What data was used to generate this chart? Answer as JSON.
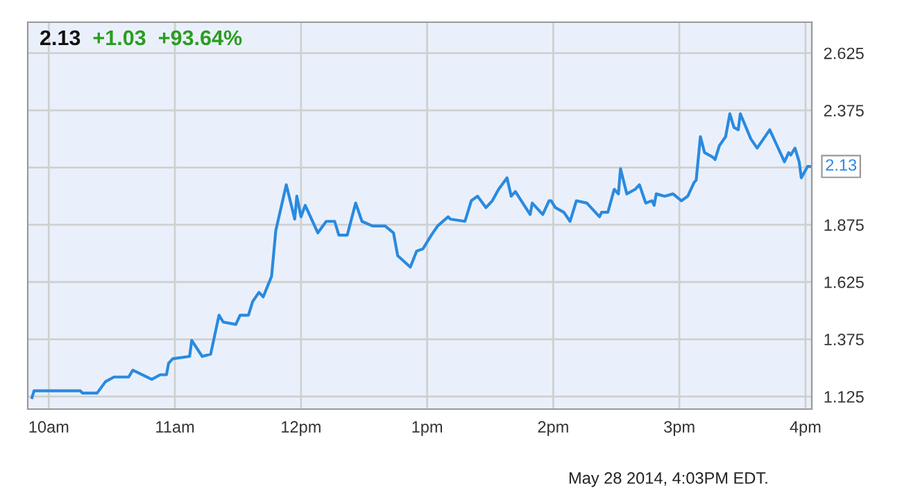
{
  "chart_data": {
    "type": "line",
    "title": "2.13",
    "subtitle": "+1.03  +93.64%",
    "annotations": [
      {
        "text": "2.13",
        "x": "2014-05-28T16:02",
        "y": 2.13
      },
      "May 28 2014, 4:03PM EDT."
    ],
    "x": [
      "2014-05-28T09:52",
      "2014-05-28T09:53",
      "2014-05-28T10:15",
      "2014-05-28T10:16",
      "2014-05-28T10:23",
      "2014-05-28T10:27",
      "2014-05-28T10:31",
      "2014-05-28T10:38",
      "2014-05-28T10:40",
      "2014-05-28T10:49",
      "2014-05-28T10:53",
      "2014-05-28T10:56",
      "2014-05-28T10:57",
      "2014-05-28T10:59",
      "2014-05-28T11:07",
      "2014-05-28T11:08",
      "2014-05-28T11:13",
      "2014-05-28T11:17",
      "2014-05-28T11:21",
      "2014-05-28T11:23",
      "2014-05-28T11:29",
      "2014-05-28T11:31",
      "2014-05-28T11:35",
      "2014-05-28T11:37",
      "2014-05-28T11:40",
      "2014-05-28T11:42",
      "2014-05-28T11:46",
      "2014-05-28T11:48",
      "2014-05-28T11:53",
      "2014-05-28T11:57",
      "2014-05-28T11:58",
      "2014-05-28T12:00",
      "2014-05-28T12:02",
      "2014-05-28T12:08",
      "2014-05-28T12:12",
      "2014-05-28T12:16",
      "2014-05-28T12:18",
      "2014-05-28T12:22",
      "2014-05-28T12:26",
      "2014-05-28T12:29",
      "2014-05-28T12:34",
      "2014-05-28T12:40",
      "2014-05-28T12:44",
      "2014-05-28T12:46",
      "2014-05-28T12:52",
      "2014-05-28T12:55",
      "2014-05-28T12:58",
      "2014-05-28T13:02",
      "2014-05-28T13:05",
      "2014-05-28T13:10",
      "2014-05-28T13:11",
      "2014-05-28T13:18",
      "2014-05-28T13:21",
      "2014-05-28T13:24",
      "2014-05-28T13:28",
      "2014-05-28T13:31",
      "2014-05-28T13:34",
      "2014-05-28T13:38",
      "2014-05-28T13:40",
      "2014-05-28T13:42",
      "2014-05-28T13:49",
      "2014-05-28T13:50",
      "2014-05-28T13:55",
      "2014-05-28T13:58",
      "2014-05-28T13:59",
      "2014-05-28T14:01",
      "2014-05-28T14:05",
      "2014-05-28T14:08",
      "2014-05-28T14:11",
      "2014-05-28T14:16",
      "2014-05-28T14:22",
      "2014-05-28T14:23",
      "2014-05-28T14:26",
      "2014-05-28T14:29",
      "2014-05-28T14:31",
      "2014-05-28T14:32",
      "2014-05-28T14:35",
      "2014-05-28T14:39",
      "2014-05-28T14:41",
      "2014-05-28T14:44",
      "2014-05-28T14:47",
      "2014-05-28T14:48",
      "2014-05-28T14:49",
      "2014-05-28T14:53",
      "2014-05-28T14:57",
      "2014-05-28T15:01",
      "2014-05-28T15:04",
      "2014-05-28T15:07",
      "2014-05-28T15:08",
      "2014-05-28T15:10",
      "2014-05-28T15:12",
      "2014-05-28T15:16",
      "2014-05-28T15:17",
      "2014-05-28T15:19",
      "2014-05-28T15:22",
      "2014-05-28T15:24",
      "2014-05-28T15:26",
      "2014-05-28T15:28",
      "2014-05-28T15:29",
      "2014-05-28T15:34",
      "2014-05-28T15:37",
      "2014-05-28T15:43",
      "2014-05-28T15:46",
      "2014-05-28T15:50",
      "2014-05-28T15:52",
      "2014-05-28T15:53",
      "2014-05-28T15:55",
      "2014-05-28T15:57",
      "2014-05-28T15:58",
      "2014-05-28T16:01",
      "2014-05-28T16:02"
    ],
    "series": [
      {
        "color": "#2a8ae0",
        "values": [
          1.12,
          1.15,
          1.15,
          1.14,
          1.14,
          1.19,
          1.21,
          1.21,
          1.24,
          1.2,
          1.22,
          1.22,
          1.27,
          1.29,
          1.3,
          1.37,
          1.3,
          1.31,
          1.48,
          1.45,
          1.44,
          1.48,
          1.48,
          1.54,
          1.58,
          1.56,
          1.65,
          1.85,
          2.05,
          1.9,
          2.0,
          1.91,
          1.96,
          1.84,
          1.89,
          1.89,
          1.83,
          1.83,
          1.97,
          1.89,
          1.87,
          1.87,
          1.84,
          1.74,
          1.69,
          1.76,
          1.77,
          1.83,
          1.87,
          1.91,
          1.9,
          1.89,
          1.98,
          2.0,
          1.95,
          1.98,
          2.03,
          2.08,
          2.0,
          2.02,
          1.92,
          1.97,
          1.92,
          1.98,
          1.98,
          1.95,
          1.93,
          1.89,
          1.98,
          1.97,
          1.91,
          1.93,
          1.93,
          2.03,
          2.01,
          2.12,
          2.01,
          2.03,
          2.05,
          1.97,
          1.98,
          1.96,
          2.01,
          2.0,
          2.01,
          1.98,
          2.0,
          2.06,
          2.07,
          2.26,
          2.19,
          2.17,
          2.16,
          2.22,
          2.26,
          2.36,
          2.3,
          2.29,
          2.36,
          2.25,
          2.21,
          2.29,
          2.23,
          2.15,
          2.19,
          2.18,
          2.21,
          2.15,
          2.08,
          2.13,
          2.13
        ]
      }
    ],
    "xlim": [
      "2014-05-28T09:50",
      "2014-05-28T16:03"
    ],
    "ylim": [
      1.07,
      2.76
    ],
    "xticks": [
      {
        "value": "2014-05-28T10:00",
        "label": "10am"
      },
      {
        "value": "2014-05-28T11:00",
        "label": "11am"
      },
      {
        "value": "2014-05-28T12:00",
        "label": "12pm"
      },
      {
        "value": "2014-05-28T13:00",
        "label": "1pm"
      },
      {
        "value": "2014-05-28T14:00",
        "label": "2pm"
      },
      {
        "value": "2014-05-28T15:00",
        "label": "3pm"
      },
      {
        "value": "2014-05-28T16:00",
        "label": "4pm"
      }
    ],
    "yticks": [
      1.125,
      1.375,
      1.625,
      1.875,
      {
        "value": 2.125,
        "label": null
      },
      2.375,
      2.625
    ],
    "grid": true,
    "legend": false,
    "marker": "none",
    "line_style": "solid"
  }
}
